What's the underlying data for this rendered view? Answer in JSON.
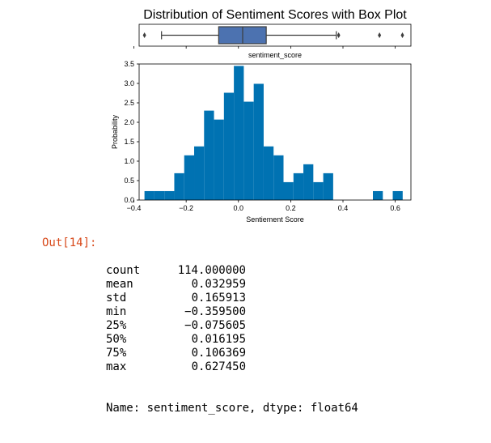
{
  "chart_data": [
    {
      "type": "box",
      "title": "Distribution of Sentiment Scores with Box Plot",
      "xlabel": "sentiment_score",
      "color": "#4c72b0",
      "whisker_low": -0.2943,
      "q1": -0.0756,
      "median": 0.0162,
      "q3": 0.1064,
      "whisker_high": 0.3745,
      "outliers": [
        -0.3595,
        0.3834,
        0.5397,
        0.6275
      ],
      "xlim": [
        -0.38,
        0.66
      ]
    },
    {
      "type": "histogram",
      "xlabel": "Sentiement Score",
      "ylabel": "Probability",
      "color": "#0072b2",
      "bin_width": 0.038,
      "x": [
        -0.3595,
        -0.3215,
        -0.2835,
        -0.2455,
        -0.2075,
        -0.1695,
        -0.1315,
        -0.0935,
        -0.0555,
        -0.0175,
        0.0205,
        0.0585,
        0.0965,
        0.1345,
        0.1725,
        0.2105,
        0.2485,
        0.2865,
        0.3245,
        0.3625,
        0.5145,
        0.5905
      ],
      "values": [
        0.23,
        0.23,
        0.23,
        0.69,
        1.15,
        1.38,
        2.3,
        2.07,
        2.76,
        3.45,
        2.53,
        2.99,
        1.38,
        1.15,
        0.46,
        0.69,
        0.92,
        0.46,
        0.69,
        0.0,
        0.23,
        0.23
      ],
      "xticks": [
        "−0.4",
        "−0.2",
        "0.0",
        "0.2",
        "0.4",
        "0.6"
      ],
      "xtick_values": [
        -0.4,
        -0.2,
        0.0,
        0.2,
        0.4,
        0.6
      ],
      "yticks": [
        "0.0",
        "0.5",
        "1.0",
        "1.5",
        "2.0",
        "2.5",
        "3.0",
        "3.5"
      ],
      "ytick_values": [
        0,
        0.5,
        1.0,
        1.5,
        2.0,
        2.5,
        3.0,
        3.5
      ],
      "xlim": [
        -0.38,
        0.66
      ],
      "ylim": [
        0,
        3.5
      ]
    }
  ],
  "output": {
    "prompt": "Out[14]:",
    "rows": [
      {
        "key": "count",
        "value": "114.000000"
      },
      {
        "key": "mean",
        "value": "0.032959"
      },
      {
        "key": "std",
        "value": "0.165913"
      },
      {
        "key": "min",
        "value": "−0.359500"
      },
      {
        "key": "25%",
        "value": "−0.075605"
      },
      {
        "key": "50%",
        "value": "0.016195"
      },
      {
        "key": "75%",
        "value": "0.106369"
      },
      {
        "key": "max",
        "value": "0.627450"
      }
    ],
    "footer": "Name: sentiment_score, dtype: float64"
  }
}
